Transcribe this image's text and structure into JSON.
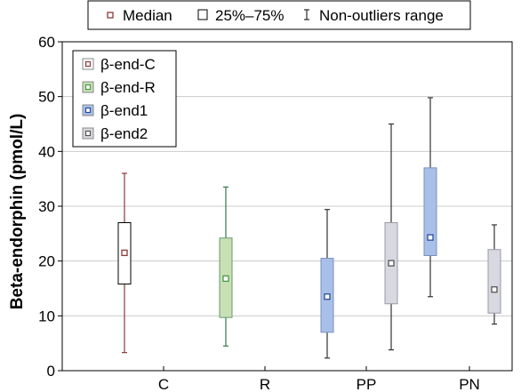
{
  "chart_data": {
    "type": "boxplot",
    "ylabel": "Beta-endorphin (pmol/L)",
    "ylim": [
      0,
      60
    ],
    "yticks": [
      0,
      10,
      20,
      30,
      40,
      50,
      60
    ],
    "grid": true,
    "categories": [
      "C",
      "R",
      "PP",
      "PN"
    ],
    "top_legend": {
      "placement": "top-center",
      "items": [
        {
          "symbol": "small-square",
          "label": "Median"
        },
        {
          "symbol": "box",
          "label": "25%–75%"
        },
        {
          "symbol": "whisker",
          "label": "Non-outliers range"
        }
      ]
    },
    "legend": {
      "placement": "top-left",
      "items": [
        {
          "label": "β-end-C",
          "color": "#ffffff",
          "marker": "#8b3a3a"
        },
        {
          "label": "β-end-R",
          "color": "#c8e0b4",
          "marker": "#4a9a4a"
        },
        {
          "label": "β-end1",
          "color": "#a8c0e8",
          "marker": "#2a4a9a"
        },
        {
          "label": "β-end2",
          "color": "#d8d8e0",
          "marker": "#555555"
        }
      ]
    },
    "series": [
      {
        "name": "β-end-C",
        "color": "#ffffff",
        "edge": "#000000",
        "whisker": "#8b3a3a",
        "boxes": [
          {
            "category": "C",
            "min": 3.3,
            "q1": 15.8,
            "median": 21.5,
            "q3": 27.0,
            "max": 36.0
          }
        ]
      },
      {
        "name": "β-end-R",
        "color": "#c8e0b4",
        "edge": "#6a9a6a",
        "whisker": "#2e7a4a",
        "boxes": [
          {
            "category": "R",
            "min": 4.5,
            "q1": 9.7,
            "median": 16.8,
            "q3": 24.2,
            "max": 33.5
          }
        ]
      },
      {
        "name": "β-end1",
        "color": "#a8c0e8",
        "edge": "#7890c0",
        "whisker": "#333333",
        "boxes": [
          {
            "category": "PP",
            "min": 2.3,
            "q1": 7.0,
            "median": 13.5,
            "q3": 20.5,
            "max": 29.4
          },
          {
            "category": "PN",
            "min": 13.5,
            "q1": 21.0,
            "median": 24.3,
            "q3": 37.0,
            "max": 49.8
          }
        ]
      },
      {
        "name": "β-end2",
        "color": "#d8d8e0",
        "edge": "#9a9aa8",
        "whisker": "#333333",
        "boxes": [
          {
            "category": "PP",
            "min": 3.8,
            "q1": 12.2,
            "median": 19.6,
            "q3": 27.0,
            "max": 45.0
          },
          {
            "category": "PN",
            "min": 8.5,
            "q1": 10.5,
            "median": 14.8,
            "q3": 22.1,
            "max": 26.6
          }
        ]
      }
    ]
  }
}
